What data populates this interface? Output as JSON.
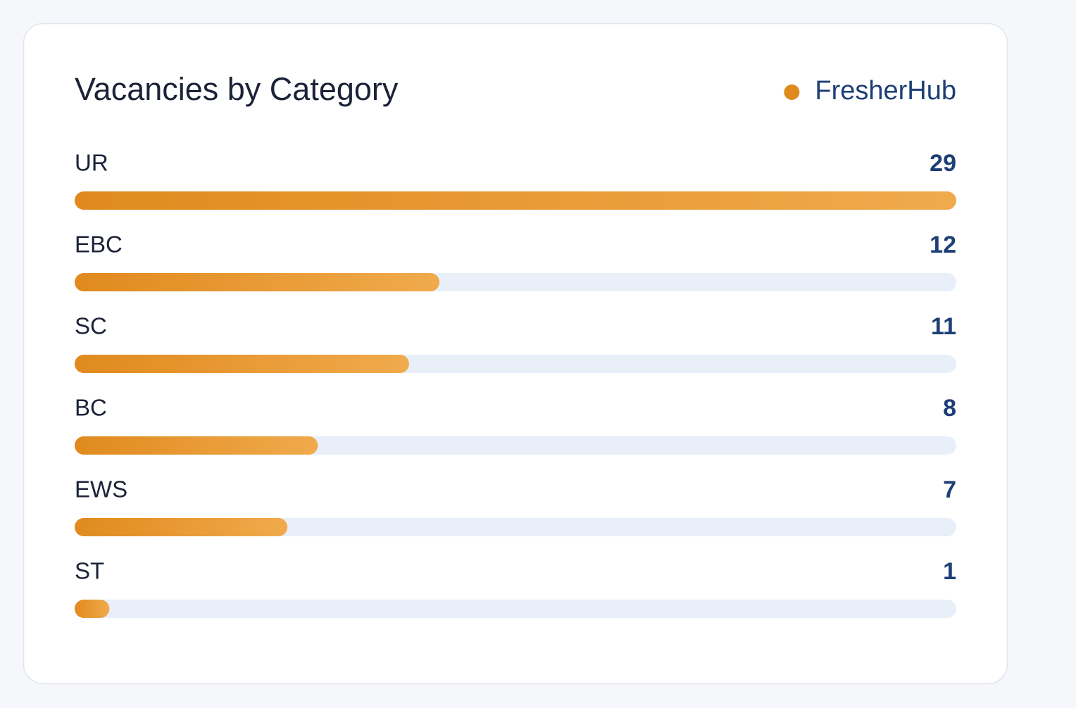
{
  "chart_data": {
    "type": "bar",
    "orientation": "horizontal",
    "title": "Vacancies by Category",
    "categories": [
      "UR",
      "EBC",
      "SC",
      "BC",
      "EWS",
      "ST"
    ],
    "series": [
      {
        "name": "FresherHub",
        "color": "#e08a1e",
        "values": [
          29,
          12,
          11,
          8,
          7,
          1
        ]
      }
    ],
    "legend": "top-right"
  }
}
